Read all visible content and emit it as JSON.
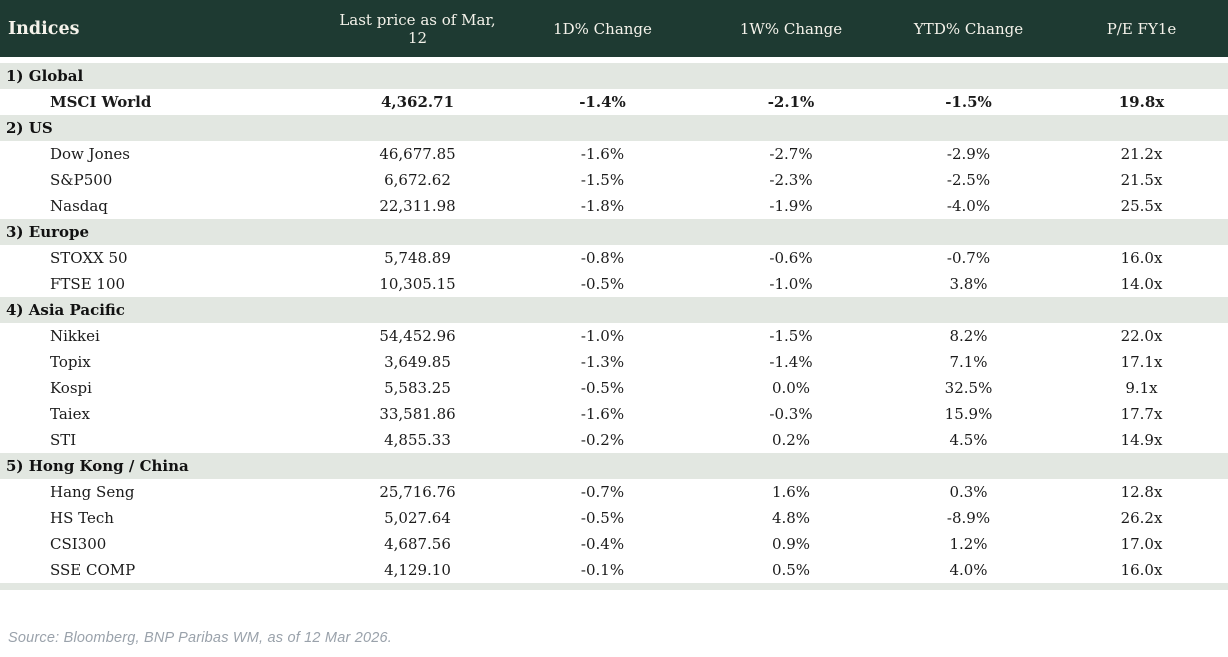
{
  "chart_data": {
    "type": "table",
    "title": "Indices",
    "columns": [
      "Indices",
      "Last price as of Mar, 12",
      "1D% Change",
      "1W% Change",
      "YTD% Change",
      "P/E FY1e"
    ],
    "sections": [
      {
        "label": "1) Global",
        "rows": [
          {
            "name": "MSCI World",
            "bold": true,
            "price": "4,362.71",
            "changes": [
              {
                "value": "-1.4%",
                "trend": "neg"
              },
              {
                "value": "-2.1%",
                "trend": "neg"
              },
              {
                "value": "-1.5%",
                "trend": "neg"
              }
            ],
            "pe": "19.8x"
          }
        ]
      },
      {
        "label": "2) US",
        "rows": [
          {
            "name": "Dow Jones",
            "bold": false,
            "price": "46,677.85",
            "changes": [
              {
                "value": "-1.6%",
                "trend": "neg"
              },
              {
                "value": "-2.7%",
                "trend": "neg"
              },
              {
                "value": "-2.9%",
                "trend": "neg"
              }
            ],
            "pe": "21.2x"
          },
          {
            "name": "S&P500",
            "bold": false,
            "price": "6,672.62",
            "changes": [
              {
                "value": "-1.5%",
                "trend": "neg"
              },
              {
                "value": "-2.3%",
                "trend": "neg"
              },
              {
                "value": "-2.5%",
                "trend": "neg"
              }
            ],
            "pe": "21.5x"
          },
          {
            "name": "Nasdaq",
            "bold": false,
            "price": "22,311.98",
            "changes": [
              {
                "value": "-1.8%",
                "trend": "neg"
              },
              {
                "value": "-1.9%",
                "trend": "neg"
              },
              {
                "value": "-4.0%",
                "trend": "neg"
              }
            ],
            "pe": "25.5x"
          }
        ]
      },
      {
        "label": "3) Europe",
        "rows": [
          {
            "name": "STOXX 50",
            "bold": false,
            "price": "5,748.89",
            "changes": [
              {
                "value": "-0.8%",
                "trend": "neg"
              },
              {
                "value": "-0.6%",
                "trend": "neg"
              },
              {
                "value": "-0.7%",
                "trend": "neg"
              }
            ],
            "pe": "16.0x"
          },
          {
            "name": "FTSE 100",
            "bold": false,
            "price": "10,305.15",
            "changes": [
              {
                "value": "-0.5%",
                "trend": "neg"
              },
              {
                "value": "-1.0%",
                "trend": "neg"
              },
              {
                "value": "3.8%",
                "trend": "pos"
              }
            ],
            "pe": "14.0x"
          }
        ]
      },
      {
        "label": "4) Asia Pacific",
        "rows": [
          {
            "name": "Nikkei",
            "bold": false,
            "price": "54,452.96",
            "changes": [
              {
                "value": "-1.0%",
                "trend": "neg"
              },
              {
                "value": "-1.5%",
                "trend": "neg"
              },
              {
                "value": "8.2%",
                "trend": "pos"
              }
            ],
            "pe": "22.0x"
          },
          {
            "name": "Topix",
            "bold": false,
            "price": "3,649.85",
            "changes": [
              {
                "value": "-1.3%",
                "trend": "neg"
              },
              {
                "value": "-1.4%",
                "trend": "neg"
              },
              {
                "value": "7.1%",
                "trend": "pos"
              }
            ],
            "pe": "17.1x"
          },
          {
            "name": "Kospi",
            "bold": false,
            "price": "5,583.25",
            "changes": [
              {
                "value": "-0.5%",
                "trend": "neg"
              },
              {
                "value": "0.0%",
                "trend": "neg"
              },
              {
                "value": "32.5%",
                "trend": "pos"
              }
            ],
            "pe": "9.1x"
          },
          {
            "name": "Taiex",
            "bold": false,
            "price": "33,581.86",
            "changes": [
              {
                "value": "-1.6%",
                "trend": "neg"
              },
              {
                "value": "-0.3%",
                "trend": "neg"
              },
              {
                "value": "15.9%",
                "trend": "pos"
              }
            ],
            "pe": "17.7x"
          },
          {
            "name": "STI",
            "bold": false,
            "price": "4,855.33",
            "changes": [
              {
                "value": "-0.2%",
                "trend": "neg"
              },
              {
                "value": "0.2%",
                "trend": "pos"
              },
              {
                "value": "4.5%",
                "trend": "pos"
              }
            ],
            "pe": "14.9x"
          }
        ]
      },
      {
        "label": "5) Hong Kong / China",
        "rows": [
          {
            "name": "Hang Seng",
            "bold": false,
            "price": "25,716.76",
            "changes": [
              {
                "value": "-0.7%",
                "trend": "neg"
              },
              {
                "value": "1.6%",
                "trend": "pos"
              },
              {
                "value": "0.3%",
                "trend": "pos"
              }
            ],
            "pe": "12.8x"
          },
          {
            "name": "HS Tech",
            "bold": false,
            "price": "5,027.64",
            "changes": [
              {
                "value": "-0.5%",
                "trend": "neg"
              },
              {
                "value": "4.8%",
                "trend": "pos"
              },
              {
                "value": "-8.9%",
                "trend": "neg"
              }
            ],
            "pe": "26.2x"
          },
          {
            "name": "CSI300",
            "bold": false,
            "price": "4,687.56",
            "changes": [
              {
                "value": "-0.4%",
                "trend": "neg"
              },
              {
                "value": "0.9%",
                "trend": "pos"
              },
              {
                "value": "1.2%",
                "trend": "pos"
              }
            ],
            "pe": "17.0x"
          },
          {
            "name": "SSE COMP",
            "bold": false,
            "price": "4,129.10",
            "changes": [
              {
                "value": "-0.1%",
                "trend": "neg"
              },
              {
                "value": "0.5%",
                "trend": "pos"
              },
              {
                "value": "4.0%",
                "trend": "pos"
              }
            ],
            "pe": "16.0x"
          }
        ]
      }
    ]
  },
  "footer": {
    "source": "Source: Bloomberg, BNP Paribas WM, as of 12 Mar 2026."
  },
  "colors": {
    "header_bg": "#1e3a32",
    "header_text": "#f4f2ea",
    "section_bg": "#e2e7e1",
    "negative": "#c00d0d",
    "positive": "#1e7b33",
    "source_text": "#9aa2ab"
  }
}
